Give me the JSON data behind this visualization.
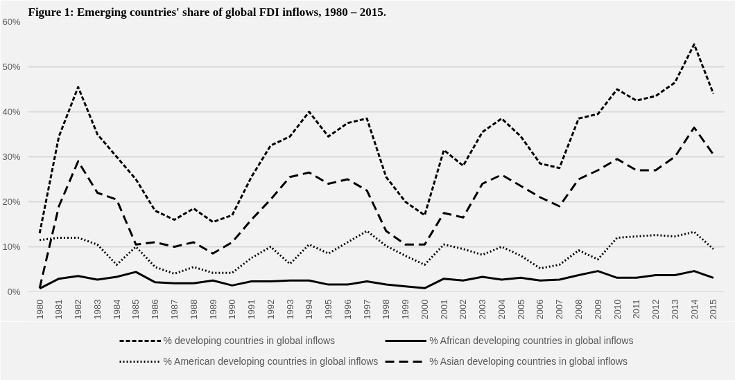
{
  "chart_data": {
    "type": "line",
    "title": "Figure 1: Emerging countries' share of global FDI inflows, 1980 – 2015.",
    "categories": [
      "1980",
      "1981",
      "1982",
      "1983",
      "1984",
      "1985",
      "1986",
      "1987",
      "1988",
      "1989",
      "1990",
      "1991",
      "1992",
      "1993",
      "1994",
      "1995",
      "1996",
      "1997",
      "1998",
      "1999",
      "2000",
      "2001",
      "2002",
      "2003",
      "2004",
      "2005",
      "2006",
      "2007",
      "2008",
      "2009",
      "2010",
      "2011",
      "2012",
      "2013",
      "2014",
      "2015"
    ],
    "ylim": [
      0,
      60
    ],
    "yticks": [
      {
        "value": 0,
        "label": "0%"
      },
      {
        "value": 10,
        "label": "10%"
      },
      {
        "value": 20,
        "label": "20%"
      },
      {
        "value": 30,
        "label": "30%"
      },
      {
        "value": 40,
        "label": "40%"
      },
      {
        "value": 50,
        "label": "50%"
      },
      {
        "value": 60,
        "label": "60%"
      }
    ],
    "grid": "y",
    "legend": "bottom",
    "marker": "none",
    "series": [
      {
        "name": "% developing countries in global inflows",
        "color": "#000000",
        "line_style": "dashed",
        "values": [
          13,
          34.5,
          45.5,
          35,
          30,
          25,
          18,
          16,
          18.5,
          15.5,
          17,
          25.5,
          32.5,
          34.5,
          40,
          34.5,
          37.5,
          38.5,
          25.5,
          20,
          17,
          31.5,
          28,
          35.5,
          38.5,
          34.5,
          28.5,
          27.5,
          38.5,
          39.5,
          45,
          42.5,
          43.5,
          46.5,
          55,
          44
        ]
      },
      {
        "name": "% African developing countries in global inflows",
        "color": "#000000",
        "line_style": "solid",
        "values": [
          0.7,
          2.9,
          3.5,
          2.7,
          3.3,
          4.4,
          2.1,
          1.9,
          1.9,
          2.5,
          1.4,
          2.3,
          2.3,
          2.5,
          2.5,
          1.6,
          1.6,
          2.3,
          1.6,
          1.2,
          0.8,
          2.9,
          2.5,
          3.3,
          2.7,
          3.1,
          2.5,
          2.7,
          3.7,
          4.6,
          3.1,
          3.1,
          3.7,
          3.7,
          4.6,
          3.1
        ]
      },
      {
        "name": "% American developing countries in global inflows",
        "color": "#000000",
        "line_style": "dotted",
        "values": [
          11.5,
          12,
          12,
          10.5,
          6,
          10,
          5.5,
          4,
          5.5,
          4.2,
          4.2,
          7.5,
          10,
          6.2,
          10.5,
          8.5,
          11,
          13.5,
          10.2,
          8,
          6,
          10.5,
          9.5,
          8.2,
          10,
          8,
          5.2,
          6,
          9.2,
          7.2,
          12,
          12.3,
          12.6,
          12.3,
          13.3,
          9.5
        ]
      },
      {
        "name": "% Asian developing countries in global inflows",
        "color": "#000000",
        "line_style": "longdashed",
        "values": [
          0.8,
          19,
          29,
          22,
          20.5,
          10.5,
          11,
          10,
          11,
          8.5,
          11,
          16,
          20.5,
          25.5,
          26.5,
          24,
          25,
          22.5,
          13.5,
          10.5,
          10.5,
          17.5,
          16.5,
          24,
          26,
          23.5,
          21,
          19,
          25,
          27,
          29.5,
          27,
          27,
          30,
          36.5,
          30.5
        ]
      }
    ]
  }
}
